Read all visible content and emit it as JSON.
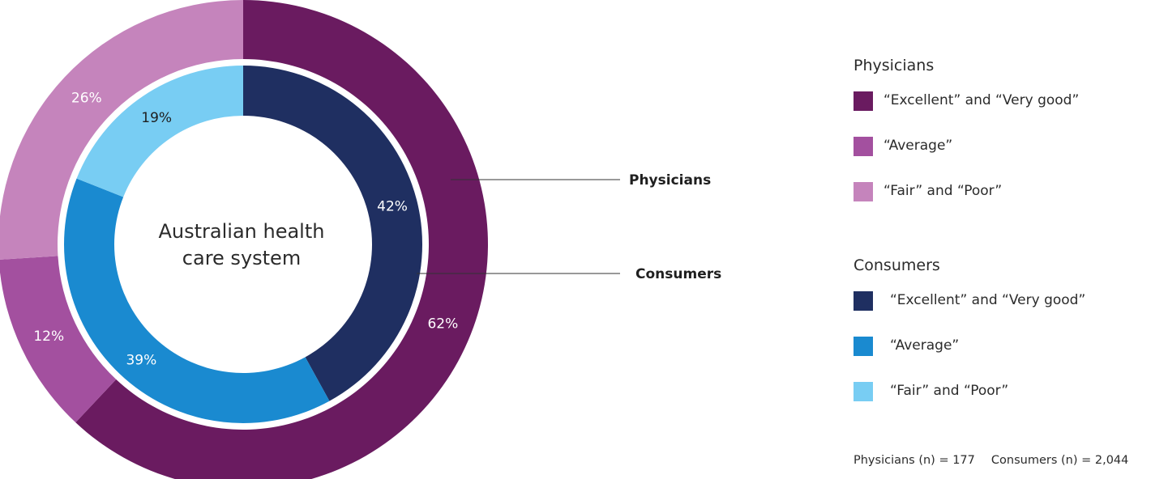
{
  "chart_data": {
    "type": "pie",
    "center_label": [
      "Australian health",
      "care system"
    ],
    "rings": [
      {
        "name": "Physicians",
        "n": 177,
        "slices": [
          {
            "label": "“Excellent” and “Very good”",
            "value": 62,
            "value_label": "62%",
            "color": "#6a1b60"
          },
          {
            "label": "“Average”",
            "value": 12,
            "value_label": "12%",
            "color": "#a3509f"
          },
          {
            "label": "“Fair” and “Poor”",
            "value": 26,
            "value_label": "26%",
            "color": "#c584bc"
          }
        ]
      },
      {
        "name": "Consumers",
        "n": 2044,
        "slices": [
          {
            "label": "“Excellent” and “Very good”",
            "value": 42,
            "value_label": "42%",
            "color": "#1f2f61"
          },
          {
            "label": "“Average”",
            "value": 39,
            "value_label": "39%",
            "color": "#1a8ad0"
          },
          {
            "label": "“Fair” and “Poor”",
            "value": 19,
            "value_label": "19%",
            "color": "#78cdf3"
          }
        ]
      }
    ],
    "legend": {
      "placement": "right",
      "groups": [
        {
          "title": "Physicians",
          "items": [
            {
              "label": "“Excellent” and “Very good”",
              "color": "#6a1b60"
            },
            {
              "label": "“Average”",
              "color": "#a3509f"
            },
            {
              "label": "“Fair” and “Poor”",
              "color": "#c584bc"
            }
          ]
        },
        {
          "title": "Consumers",
          "items": [
            {
              "label": "“Excellent” and “Very good”",
              "color": "#1f2f61"
            },
            {
              "label": "“Average”",
              "color": "#1a8ad0"
            },
            {
              "label": "“Fair” and “Poor”",
              "color": "#78cdf3"
            }
          ]
        }
      ]
    },
    "footnote": [
      "Physicians (n) = 177",
      "Consumers (n) = 2,044"
    ]
  }
}
